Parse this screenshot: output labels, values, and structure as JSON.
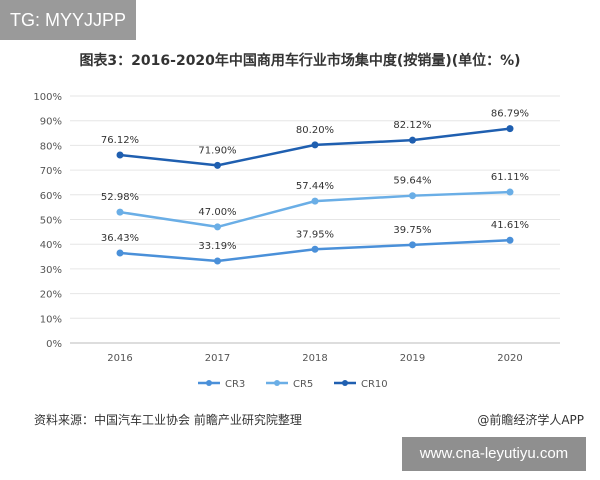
{
  "badge": {
    "text": "TG: MYYJJPP"
  },
  "footer": {
    "source": "资料来源：中国汽车工业协会 前瞻产业研究院整理",
    "brand": "@前瞻经济学人APP",
    "watermark": "www.cna-leyutiyu.com"
  },
  "chart_data": {
    "type": "line",
    "title": "图表3：2016-2020年中国商用车行业市场集中度(按销量)(单位：%)",
    "x": [
      "2016",
      "2017",
      "2018",
      "2019",
      "2020"
    ],
    "y_ticks": [
      "0%",
      "10%",
      "20%",
      "30%",
      "40%",
      "50%",
      "60%",
      "70%",
      "80%",
      "90%",
      "100%"
    ],
    "ylim": [
      0,
      100
    ],
    "grid": true,
    "legend": "bottom",
    "series": [
      {
        "name": "CR3",
        "color": "#4a90d9",
        "values": [
          36.43,
          33.19,
          37.95,
          39.75,
          41.61
        ],
        "labels": [
          "36.43%",
          "33.19%",
          "37.95%",
          "39.75%",
          "41.61%"
        ]
      },
      {
        "name": "CR5",
        "color": "#6aaee6",
        "values": [
          52.98,
          47.0,
          57.44,
          59.64,
          61.11
        ],
        "labels": [
          "52.98%",
          "47.00%",
          "57.44%",
          "59.64%",
          "61.11%"
        ]
      },
      {
        "name": "CR10",
        "color": "#1f5fb0",
        "values": [
          76.12,
          71.9,
          80.2,
          82.12,
          86.79
        ],
        "labels": [
          "76.12%",
          "71.90%",
          "80.20%",
          "82.12%",
          "86.79%"
        ]
      }
    ]
  }
}
